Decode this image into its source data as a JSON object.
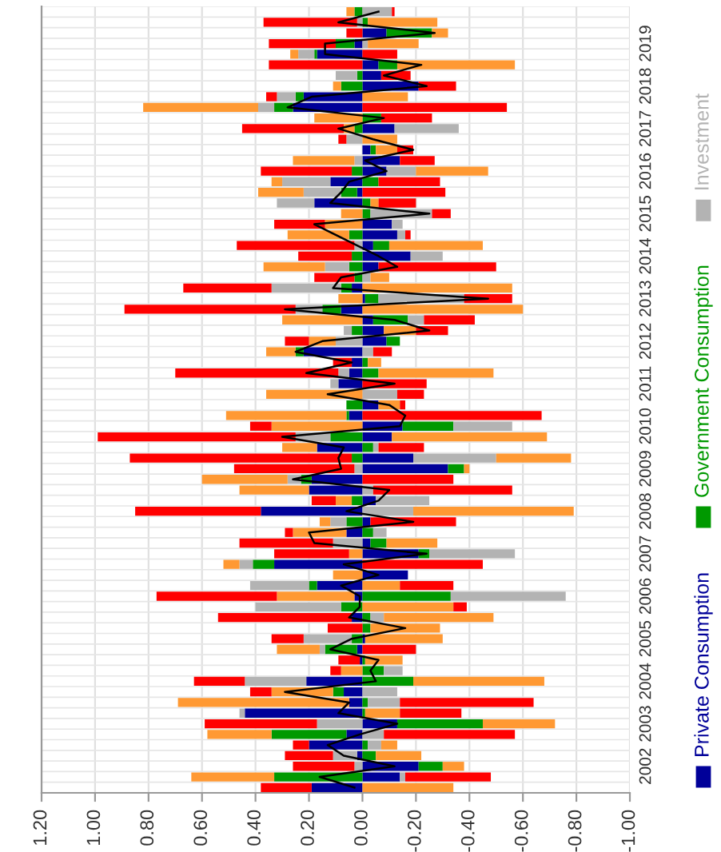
{
  "chart_data": {
    "type": "bar",
    "orientation": "horizontal",
    "stacked": true,
    "categories": [
      null,
      null,
      null,
      "2019",
      null,
      null,
      null,
      "2018",
      null,
      null,
      null,
      "2017",
      null,
      null,
      null,
      "2016",
      null,
      null,
      null,
      "2015",
      null,
      null,
      null,
      "2014",
      null,
      null,
      null,
      "2013",
      null,
      null,
      null,
      "2012",
      null,
      null,
      null,
      "2011",
      null,
      null,
      null,
      "2010",
      null,
      null,
      null,
      "2009",
      null,
      null,
      null,
      "2008",
      null,
      null,
      null,
      "2007",
      null,
      null,
      null,
      "2006",
      null,
      null,
      null,
      "2005",
      null,
      null,
      null,
      "2004",
      null,
      null,
      null,
      "2003",
      null,
      null,
      null,
      "2002",
      null,
      null
    ],
    "series": [
      {
        "name": "Private Consumption",
        "color": "#000099",
        "values": [
          0,
          0,
          -0.09,
          0.03,
          0.17,
          -0.06,
          -0.07,
          -0.21,
          0.22,
          0.26,
          0,
          -0.12,
          0,
          -0.03,
          -0.14,
          -0.09,
          0.12,
          0.02,
          0.18,
          0,
          -0.11,
          -0.13,
          -0.04,
          -0.18,
          -0.06,
          0,
          0.04,
          -0.01,
          0.08,
          -0.04,
          -0.08,
          -0.09,
          0.22,
          0.04,
          0.05,
          0.09,
          0,
          -0.06,
          0.05,
          -0.15,
          -0.11,
          0.17,
          -0.19,
          -0.32,
          0.19,
          0.2,
          -0.05,
          0.38,
          -0.03,
          0.06,
          -0.03,
          -0.21,
          0.33,
          -0.17,
          0.17,
          0.03,
          0,
          0.04,
          0,
          -0.01,
          0.02,
          0.01,
          0,
          0.21,
          0.07,
          0.05,
          0.44,
          -0.13,
          0.06,
          0.2,
          0.02,
          -0.21,
          -0.14,
          0.19
        ]
      },
      {
        "name": "Government Consumption",
        "color": "#009900",
        "values": [
          0.03,
          -0.02,
          -0.17,
          0.07,
          0.01,
          -0.07,
          0.02,
          0.08,
          0.03,
          0.07,
          -0.07,
          0.03,
          0,
          -0.02,
          0,
          0.04,
          -0.06,
          0.06,
          -0.03,
          -0.03,
          0,
          0.05,
          -0.06,
          0.04,
          0.05,
          0.03,
          0.04,
          -0.05,
          0.07,
          -0.13,
          0.04,
          -0.05,
          0.03,
          -0.02,
          -0.06,
          0,
          0,
          0.06,
          0.01,
          -0.19,
          0.12,
          -0.04,
          0.04,
          -0.06,
          0.04,
          0,
          0.04,
          0,
          0.06,
          -0.04,
          -0.06,
          -0.04,
          0.08,
          0,
          0.03,
          -0.33,
          0.08,
          -0.03,
          -0.03,
          0.04,
          0.12,
          -0.01,
          -0.08,
          -0.19,
          0.04,
          -0.02,
          -0.01,
          -0.32,
          0.28,
          -0.02,
          -0.05,
          -0.09,
          0.33,
          0
        ]
      },
      {
        "name": "Investment",
        "color": "#b3b3b3",
        "values": [
          -0.11,
          0.02,
          null,
          -0.02,
          0.06,
          0,
          0.08,
          0,
          0.07,
          0.06,
          0,
          -0.24,
          0.06,
          0,
          0.03,
          -0.11,
          0.18,
          0.14,
          0.14,
          -0.23,
          -0.04,
          -0.03,
          0.03,
          -0.12,
          0.09,
          -0.03,
          0.26,
          -0.32,
          0.1,
          -0.06,
          0.03,
          0.1,
          -0.04,
          0,
          0.04,
          0.03,
          -0.13,
          0,
          0,
          -0.22,
          0.13,
          -0.02,
          -0.31,
          0.03,
          0.05,
          -0.04,
          -0.2,
          -0.19,
          0.06,
          -0.05,
          0.11,
          -0.32,
          0.05,
          0,
          0.22,
          -0.43,
          0.32,
          -0.05,
          0,
          0.18,
          0.02,
          0,
          -0.07,
          0.23,
          -0.13,
          -0.12,
          0.02,
          0.17,
          -0.08,
          -0.05,
          0.09,
          0.03,
          -0.02,
          null
        ]
      },
      {
        "color": "#ff9933",
        "values": [
          0.03,
          -0.26,
          -0.06,
          -0.19,
          0.03,
          -0.44,
          0,
          0.03,
          -0.17,
          0.43,
          0.18,
          0.04,
          -0.13,
          -0.08,
          0.23,
          -0.27,
          0.04,
          0.17,
          -0.03,
          0.08,
          0.14,
          0.23,
          -0.35,
          0,
          0.23,
          -0.07,
          -0.56,
          0.09,
          -0.6,
          0.3,
          -0.12,
          0.1,
          0.11,
          -0.05,
          -0.43,
          0,
          0.36,
          -0.08,
          0.45,
          0.34,
          -0.58,
          0.13,
          -0.28,
          -0.02,
          0.32,
          0.26,
          0.06,
          -0.6,
          0.04,
          0.2,
          -0.19,
          0.05,
          0.06,
          0.11,
          -0.14,
          0.29,
          -0.34,
          -0.41,
          -0.26,
          -0.29,
          0.16,
          -0.14,
          0.08,
          -0.49,
          0.23,
          0.64,
          -0.13,
          -0.27,
          0.24,
          -0.06,
          -0.17,
          -0.08,
          0.31,
          -0.34
        ]
      },
      {
        "color": "#ff0000",
        "values": [
          -0.01,
          0.35,
          0.06,
          0.25,
          -0.13,
          0.35,
          -0.11,
          -0.14,
          0.04,
          -0.54,
          -0.19,
          0.38,
          0.03,
          -0.06,
          -0.13,
          0.34,
          -0.23,
          -0.31,
          -0.14,
          -0.07,
          0.19,
          -0.02,
          0.44,
          0.2,
          -0.44,
          0.15,
          0.33,
          -0.18,
          0.64,
          -0.19,
          -0.12,
          0.09,
          -0.07,
          0.07,
          0.61,
          -0.24,
          -0.1,
          -0.02,
          -0.67,
          0.08,
          0.74,
          -0.17,
          0.83,
          0.45,
          -0.34,
          -0.52,
          0.09,
          0.47,
          -0.32,
          0.03,
          0.35,
          0.28,
          -0.45,
          0,
          -0.2,
          0.45,
          -0.05,
          0.5,
          0.13,
          0.12,
          -0.2,
          0.08,
          0.04,
          0.19,
          0.08,
          -0.5,
          -0.23,
          0.42,
          -0.49,
          0.06,
          0.18,
          0.23,
          -0.32,
          0.19
        ]
      },
      {
        "type": "line",
        "color": "#000000",
        "values": [
          -0.06,
          0.09,
          -0.27,
          0.14,
          0.14,
          -0.22,
          -0.08,
          -0.24,
          0.19,
          0.28,
          -0.08,
          0.09,
          -0.04,
          -0.19,
          -0.01,
          -0.09,
          0.05,
          0.08,
          0.12,
          -0.25,
          0.18,
          0.1,
          0.02,
          -0.06,
          -0.13,
          0.08,
          0.11,
          -0.47,
          0.29,
          -0.12,
          -0.25,
          0.15,
          0.25,
          0.04,
          0.21,
          -0.12,
          0.13,
          -0.1,
          -0.16,
          -0.14,
          0.3,
          0.07,
          0.09,
          0.08,
          0.26,
          -0.1,
          -0.06,
          0.06,
          -0.19,
          0.2,
          0.18,
          -0.24,
          0.07,
          -0.06,
          0.08,
          0.01,
          0.01,
          0.05,
          -0.16,
          0.04,
          0.12,
          -0.06,
          -0.03,
          -0.05,
          0.29,
          0.05,
          0.09,
          -0.13,
          0.01,
          0.13,
          0.07,
          -0.12,
          0.16,
          0.03
        ]
      }
    ],
    "xlim": [
      1.2,
      -1.0
    ],
    "xticks": [
      {
        "value": 1.2,
        "label": "1.20"
      },
      {
        "value": 1.0,
        "label": "1.00"
      },
      {
        "value": 0.8,
        "label": "0.80"
      },
      {
        "value": 0.6,
        "label": "0.60"
      },
      {
        "value": 0.4,
        "label": "0.40"
      },
      {
        "value": 0.2,
        "label": "0.20"
      },
      {
        "value": 0,
        "label": "0.00"
      },
      {
        "value": -0.2,
        "label": "-0.20"
      },
      {
        "value": -0.4,
        "label": "-0.40"
      },
      {
        "value": -0.6,
        "label": "-0.60"
      },
      {
        "value": -0.8,
        "label": "-0.80"
      },
      {
        "value": -1.0,
        "label": "-1.00"
      }
    ],
    "grid": true,
    "legend": "right"
  }
}
